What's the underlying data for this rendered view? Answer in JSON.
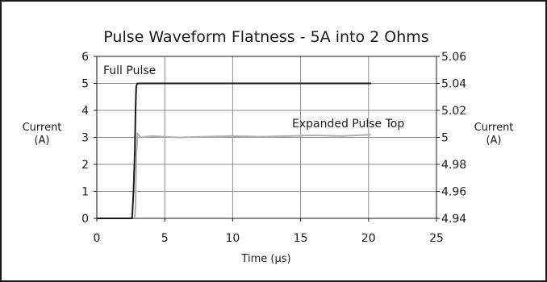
{
  "chart_data": {
    "type": "line",
    "title": "Pulse Waveform Flatness - 5A into 2 Ohms",
    "xlabel": "Time (µs)",
    "ylabel_left": [
      "Current",
      "(A)"
    ],
    "ylabel_right": [
      "Current",
      "(A)"
    ],
    "xlim": [
      0,
      25
    ],
    "ylim_left": [
      0,
      6
    ],
    "ylim_right": [
      4.94,
      5.06
    ],
    "x_ticks": [
      "0",
      "5",
      "10",
      "15",
      "20",
      "25"
    ],
    "y_ticks_left": [
      "0",
      "1",
      "2",
      "3",
      "4",
      "5",
      "6"
    ],
    "y_ticks_right": [
      "4.94",
      "4.96",
      "4.98",
      "5",
      "5.02",
      "5.04",
      "5.06"
    ],
    "grid": true,
    "series": [
      {
        "name": "Full Pulse",
        "axis": "left",
        "color": "#1a1a1a",
        "points": [
          [
            0,
            0
          ],
          [
            2.6,
            0
          ],
          [
            2.7,
            1.0
          ],
          [
            2.8,
            2.5
          ],
          [
            2.85,
            4.0
          ],
          [
            2.9,
            4.9
          ],
          [
            3.0,
            5.0
          ],
          [
            20.2,
            5.0
          ]
        ]
      },
      {
        "name": "Expanded Pulse Top",
        "axis": "right",
        "color": "#b0b0b0",
        "points": [
          [
            2.8,
            4.94
          ],
          [
            2.85,
            4.95
          ],
          [
            2.9,
            4.985
          ],
          [
            3.0,
            5.003
          ],
          [
            3.2,
            5.0
          ],
          [
            4,
            5.001
          ],
          [
            6,
            5.0
          ],
          [
            8,
            5.0005
          ],
          [
            10,
            5.001
          ],
          [
            12,
            5.0005
          ],
          [
            14,
            5.001
          ],
          [
            16,
            5.0015
          ],
          [
            18,
            5.001
          ],
          [
            20.2,
            5.002
          ]
        ]
      }
    ]
  },
  "annotations": {
    "full_pulse": "Full Pulse",
    "expanded_pulse_top": "Expanded Pulse Top"
  }
}
